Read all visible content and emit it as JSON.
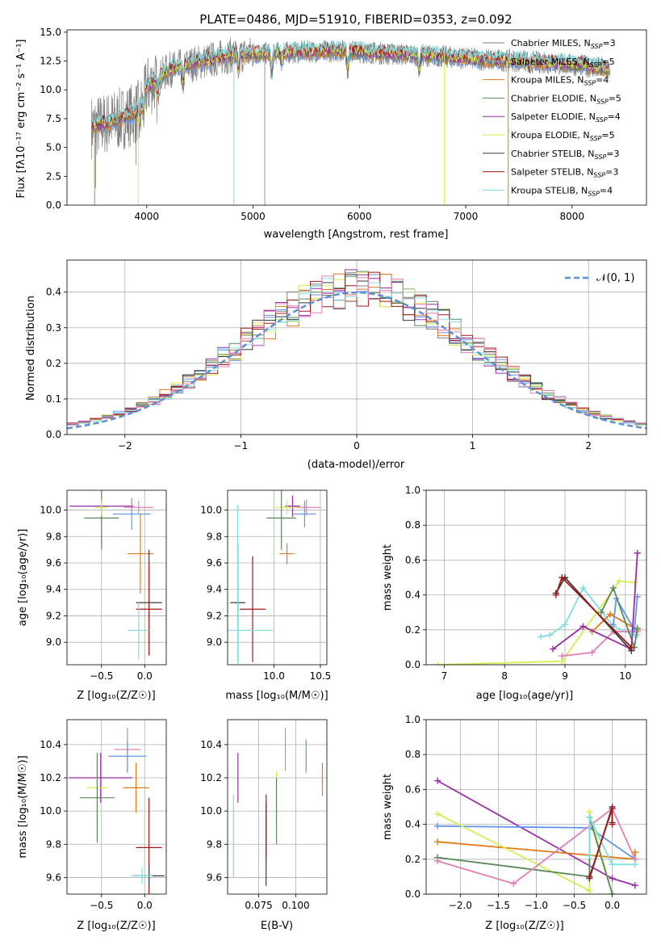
{
  "colors": {
    "chabrier_miles": "#808080",
    "salpeter_miles": "#6495ed",
    "kroupa_miles": "#e07b18",
    "chabrier_elodie": "#5a8a5a",
    "salpeter_elodie": "#9a2ca8",
    "kroupa_elodie": "#d4ee50",
    "chabrier_stelib": "#3a3a3a",
    "salpeter_stelib": "#a01818",
    "kroupa_stelib": "#80dde0",
    "pink": "#e57fb4",
    "normal": "#5b8fd6"
  },
  "chart_data": [
    {
      "type": "line",
      "title": "PLATE=0486, MJD=51910, FIBERID=0353, z=0.092",
      "xlabel": "wavelength [Angstrom, rest frame]",
      "ylabel": "Flux [fλ10⁻¹⁷ erg cm⁻² s⁻¹ A⁻¹]",
      "xlim": [
        3250,
        8700
      ],
      "ylim": [
        0,
        15.2
      ],
      "xticks": [
        "4000",
        "5000",
        "6000",
        "7000",
        "8000"
      ],
      "yticks": [
        "0.0",
        "2.5",
        "5.0",
        "7.5",
        "10.0",
        "12.5",
        "15.0"
      ],
      "legend_position": "right",
      "series": [
        {
          "name": "Chabrier MILES, N",
          "sub": "SSP",
          "suffix": "=3",
          "color": "#808080"
        },
        {
          "name": "Salpeter MILES, N",
          "sub": "SSP",
          "suffix": "=5",
          "color": "#6495ed"
        },
        {
          "name": "Kroupa MILES, N",
          "sub": "SSP",
          "suffix": "=4",
          "color": "#e07b18"
        },
        {
          "name": "Chabrier ELODIE, N",
          "sub": "SSP",
          "suffix": "=5",
          "color": "#5a8a5a"
        },
        {
          "name": "Salpeter ELODIE, N",
          "sub": "SSP",
          "suffix": "=4",
          "color": "#9a2ca8"
        },
        {
          "name": "Kroupa ELODIE, N",
          "sub": "SSP",
          "suffix": "=5",
          "color": "#d4ee50"
        },
        {
          "name": "Chabrier STELIB, N",
          "sub": "SSP",
          "suffix": "=3",
          "color": "#3a3a3a"
        },
        {
          "name": "Salpeter STELIB, N",
          "sub": "SSP",
          "suffix": "=3",
          "color": "#a01818"
        },
        {
          "name": "Kroupa STELIB, N",
          "sub": "SSP",
          "suffix": "=4",
          "color": "#80dde0"
        }
      ],
      "continuum": {
        "wavelength": [
          3500,
          3700,
          3900,
          4000,
          4200,
          4400,
          4600,
          4800,
          5000,
          5200,
          5500,
          5800,
          6000,
          6300,
          6600,
          6900,
          7200,
          7500,
          7800,
          8100,
          8350
        ],
        "flux": [
          6.8,
          7.3,
          8.0,
          10.2,
          11.7,
          12.2,
          12.6,
          13.0,
          13.1,
          13.2,
          13.3,
          13.4,
          13.3,
          13.1,
          13.0,
          12.8,
          12.6,
          12.5,
          12.3,
          12.1,
          11.8
        ]
      }
    },
    {
      "type": "histogram",
      "xlabel": "(data-model)/error",
      "ylabel": "Normed distribution",
      "xlim": [
        -2.5,
        2.5
      ],
      "ylim": [
        0,
        0.49
      ],
      "xticks": [
        "−2",
        "−1",
        "0",
        "1",
        "2"
      ],
      "yticks": [
        "0.0",
        "0.1",
        "0.2",
        "0.3",
        "0.4"
      ],
      "legend": {
        "label": "𝒩(0, 1)",
        "position": "top-right"
      },
      "grid": true
    },
    {
      "type": "scatter",
      "xlabel": "Z [log₁₀(Z/Z☉)]",
      "ylabel": "age  [log₁₀(age/yr)]",
      "xlim": [
        -0.9,
        0.25
      ],
      "ylim": [
        8.83,
        10.15
      ],
      "xticks": [
        "−0.5",
        "0.0"
      ],
      "yticks": [
        "9.0",
        "9.2",
        "9.4",
        "9.6",
        "9.8",
        "10.0"
      ],
      "grid": true,
      "points": [
        {
          "x": -0.5,
          "y": 10.03,
          "xe": 0.37,
          "ye": 0.05,
          "c": "#9a2ca8"
        },
        {
          "x": -0.15,
          "y": 9.97,
          "xe": 0.22,
          "ye": 0.12,
          "c": "#6495ed"
        },
        {
          "x": -0.5,
          "y": 9.94,
          "xe": 0.2,
          "ye": 0.24,
          "c": "#5a8a5a"
        },
        {
          "x": -0.5,
          "y": 10.02,
          "xe": 0.08,
          "ye": 0.06,
          "c": "#d4ee50"
        },
        {
          "x": -0.07,
          "y": 10.02,
          "xe": 0.17,
          "ye": 0.05,
          "c": "#e57fb4"
        },
        {
          "x": -0.05,
          "y": 9.67,
          "xe": 0.15,
          "ye": 0.3,
          "c": "#e07b18"
        },
        {
          "x": 0.05,
          "y": 9.3,
          "xe": 0.15,
          "ye": 0.4,
          "c": "#3a3a3a"
        },
        {
          "x": 0.05,
          "y": 9.25,
          "xe": 0.15,
          "ye": 0.35,
          "c": "#a01818"
        },
        {
          "x": -0.07,
          "y": 9.09,
          "xe": 0.12,
          "ye": 0.22,
          "c": "#80dde0"
        }
      ]
    },
    {
      "type": "scatter",
      "xlabel": "mass [log₁₀(M/M☉)]",
      "xlim": [
        9.5,
        10.57
      ],
      "ylim": [
        8.83,
        10.15
      ],
      "xticks": [
        "10.0",
        "10.5"
      ],
      "yticks": [
        "9.0",
        "9.2",
        "9.4",
        "9.6",
        "9.8",
        "10.0"
      ],
      "grid": true,
      "points": [
        {
          "x": 10.35,
          "y": 10.02,
          "xe": 0.15,
          "ye": 0.06,
          "c": "#e57fb4"
        },
        {
          "x": 10.33,
          "y": 9.97,
          "xe": 0.12,
          "ye": 0.1,
          "c": "#6495ed"
        },
        {
          "x": 10.2,
          "y": 10.03,
          "xe": 0.08,
          "ye": 0.08,
          "c": "#9a2ca8"
        },
        {
          "x": 10.14,
          "y": 10.02,
          "xe": 0.12,
          "ye": 0.05,
          "c": "#d4ee50"
        },
        {
          "x": 10.08,
          "y": 9.94,
          "xe": 0.16,
          "ye": 0.24,
          "c": "#5a8a5a"
        },
        {
          "x": 10.14,
          "y": 9.67,
          "xe": 0.08,
          "ye": 0.08,
          "c": "#e07b18"
        },
        {
          "x": 9.61,
          "y": 9.3,
          "xe": 0.08,
          "ye": 0.45,
          "c": "#3a3a3a"
        },
        {
          "x": 9.77,
          "y": 9.25,
          "xe": 0.14,
          "ye": 0.4,
          "c": "#a01818"
        },
        {
          "x": 9.61,
          "y": 9.09,
          "xe": 0.38,
          "ye": 0.95,
          "c": "#80dde0"
        }
      ]
    },
    {
      "type": "line",
      "xlabel": "age  [log₁₀(age/yr)]",
      "ylabel": "mass weight",
      "xlim": [
        6.7,
        10.35
      ],
      "ylim": [
        0,
        1.0
      ],
      "xticks": [
        "7",
        "8",
        "9",
        "10"
      ],
      "yticks": [
        "0.0",
        "0.2",
        "0.4",
        "0.6",
        "0.8",
        "1.0"
      ],
      "grid": true,
      "series": [
        {
          "c": "#d4ee50",
          "x": [
            6.9,
            8.95,
            9.9,
            10.15
          ],
          "y": [
            0.0,
            0.02,
            0.48,
            0.47
          ]
        },
        {
          "c": "#80dde0",
          "x": [
            8.6,
            8.75,
            9.0,
            9.3,
            9.8,
            10.15,
            10.2
          ],
          "y": [
            0.16,
            0.17,
            0.23,
            0.44,
            0.22,
            0.17,
            0.17
          ]
        },
        {
          "c": "#e57fb4",
          "x": [
            8.95,
            9.45,
            9.8,
            10.2
          ],
          "y": [
            0.05,
            0.07,
            0.19,
            0.19
          ]
        },
        {
          "c": "#e07b18",
          "x": [
            9.45,
            9.75,
            10.2
          ],
          "y": [
            0.19,
            0.29,
            0.2
          ]
        },
        {
          "c": "#6495ed",
          "x": [
            9.8,
            9.85,
            10.15,
            10.2
          ],
          "y": [
            0.23,
            0.38,
            0.2,
            0.39
          ]
        },
        {
          "c": "#5a8a5a",
          "x": [
            9.6,
            9.8,
            10.15,
            10.2
          ],
          "y": [
            0.3,
            0.44,
            0.1,
            0.21
          ]
        },
        {
          "c": "#9a2ca8",
          "x": [
            8.8,
            9.3,
            10.1,
            10.2
          ],
          "y": [
            0.09,
            0.22,
            0.09,
            0.64
          ]
        },
        {
          "c": "#3a3a3a",
          "x": [
            8.85,
            9.0,
            10.1
          ],
          "y": [
            0.41,
            0.5,
            0.08
          ]
        },
        {
          "c": "#a01818",
          "x": [
            8.85,
            8.95,
            10.1
          ],
          "y": [
            0.4,
            0.5,
            0.1
          ]
        }
      ]
    },
    {
      "type": "scatter",
      "xlabel": "Z [log₁₀(Z/Z☉)]",
      "ylabel": "mass [log₁₀(M/M☉)]",
      "xlim": [
        -0.9,
        0.25
      ],
      "ylim": [
        9.5,
        10.55
      ],
      "xticks": [
        "−0.5",
        "0.0"
      ],
      "yticks": [
        "9.6",
        "9.8",
        "10.0",
        "10.2",
        "10.4"
      ],
      "grid": true,
      "points": [
        {
          "x": -0.2,
          "y": 10.37,
          "xe": 0.15,
          "ye": 0.13,
          "c": "#e57fb4"
        },
        {
          "x": -0.2,
          "y": 10.33,
          "xe": 0.22,
          "ye": 0.1,
          "c": "#6495ed"
        },
        {
          "x": -0.51,
          "y": 10.2,
          "xe": 0.37,
          "ye": 0.15,
          "c": "#9a2ca8"
        },
        {
          "x": -0.55,
          "y": 10.14,
          "xe": 0.12,
          "ye": 0.2,
          "c": "#d4ee50"
        },
        {
          "x": -0.55,
          "y": 10.08,
          "xe": 0.2,
          "ye": 0.27,
          "c": "#5a8a5a"
        },
        {
          "x": -0.1,
          "y": 10.14,
          "xe": 0.15,
          "ye": 0.15,
          "c": "#e07b18"
        },
        {
          "x": 0.05,
          "y": 9.78,
          "xe": 0.15,
          "ye": 0.3,
          "c": "#a01818"
        },
        {
          "x": 0.05,
          "y": 9.61,
          "xe": 0.18,
          "ye": 0.06,
          "c": "#3a3a3a"
        },
        {
          "x": -0.03,
          "y": 9.61,
          "xe": 0.12,
          "ye": 0.05,
          "c": "#80dde0"
        }
      ]
    },
    {
      "type": "scatter",
      "xlabel": "E(B-V)",
      "xlim": [
        0.054,
        0.121
      ],
      "ylim": [
        9.5,
        10.55
      ],
      "xticks": [
        "0.075",
        "0.100"
      ],
      "yticks": [
        "9.6",
        "9.8",
        "10.0",
        "10.2",
        "10.4"
      ],
      "grid": true,
      "points": [
        {
          "x": 0.093,
          "y": 10.37,
          "xe": 0,
          "ye": 0.13,
          "c": "#e57fb4"
        },
        {
          "x": 0.107,
          "y": 10.33,
          "xe": 0,
          "ye": 0.1,
          "c": "#6495ed"
        },
        {
          "x": 0.061,
          "y": 10.2,
          "xe": 0,
          "ye": 0.15,
          "c": "#9a2ca8"
        },
        {
          "x": 0.087,
          "y": 10.09,
          "xe": 0,
          "ye": 0.15,
          "c": "#d4ee50"
        },
        {
          "x": 0.087,
          "y": 10.0,
          "xe": 0,
          "ye": 0.2,
          "c": "#5a8a5a"
        },
        {
          "x": 0.118,
          "y": 10.19,
          "xe": 0,
          "ye": 0.1,
          "c": "#e07b18"
        },
        {
          "x": 0.08,
          "y": 9.8,
          "xe": 0,
          "ye": 0.25,
          "c": "#3a3a3a"
        },
        {
          "x": 0.08,
          "y": 9.91,
          "xe": 0,
          "ye": 0.19,
          "c": "#a01818"
        },
        {
          "x": 0.058,
          "y": 9.85,
          "xe": 0,
          "ye": 0.25,
          "c": "#80dde0"
        }
      ]
    },
    {
      "type": "line",
      "xlabel": "Z [log₁₀(Z/Z☉)]",
      "ylabel": "mass weight",
      "xlim": [
        -2.45,
        0.45
      ],
      "ylim": [
        0,
        1.0
      ],
      "xticks": [
        "−2.0",
        "−1.5",
        "−1.0",
        "−0.5",
        "0.0"
      ],
      "yticks": [
        "0.0",
        "0.2",
        "0.4",
        "0.6",
        "0.8",
        "1.0"
      ],
      "grid": true,
      "series": [
        {
          "c": "#9a2ca8",
          "x": [
            -2.3,
            0.0,
            0.3
          ],
          "y": [
            0.65,
            0.09,
            0.05
          ]
        },
        {
          "c": "#6495ed",
          "x": [
            -2.3,
            -0.3,
            0.3
          ],
          "y": [
            0.39,
            0.38,
            0.2
          ]
        },
        {
          "c": "#e07b18",
          "x": [
            -2.3,
            0.3,
            0.3
          ],
          "y": [
            0.3,
            0.2,
            0.24
          ]
        },
        {
          "c": "#d4ee50",
          "x": [
            -2.3,
            -0.3,
            -0.3,
            0.0
          ],
          "y": [
            0.46,
            0.02,
            0.47,
            0.0
          ]
        },
        {
          "c": "#5a8a5a",
          "x": [
            -2.3,
            -0.3,
            -0.3,
            0.0
          ],
          "y": [
            0.21,
            0.1,
            0.44,
            0.0
          ]
        },
        {
          "c": "#e57fb4",
          "x": [
            -2.3,
            -1.3,
            0.0,
            0.3
          ],
          "y": [
            0.19,
            0.06,
            0.49,
            0.2
          ]
        },
        {
          "c": "#80dde0",
          "x": [
            -0.3,
            -0.3,
            0.0,
            0.3
          ],
          "y": [
            0.22,
            0.44,
            0.17,
            0.17
          ]
        },
        {
          "c": "#3a3a3a",
          "x": [
            -0.3,
            0.0,
            0.0
          ],
          "y": [
            0.09,
            0.5,
            0.41
          ]
        },
        {
          "c": "#a01818",
          "x": [
            -0.3,
            0.0,
            0.0
          ],
          "y": [
            0.1,
            0.49,
            0.4
          ]
        }
      ]
    }
  ]
}
